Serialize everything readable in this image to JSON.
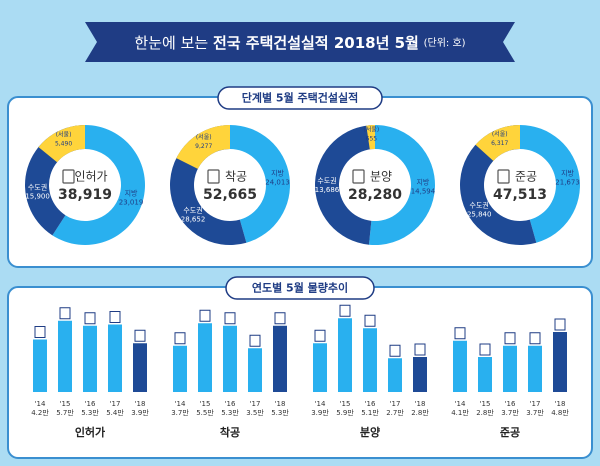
{
  "header": {
    "title_lead": "한눈에 보는",
    "title_main": "전국 주택건설실적 2018년 5월",
    "unit": "(단위: 호)"
  },
  "sections": [
    "단계별 5월 주택건설실적",
    "연도별 5월 물량추이"
  ],
  "chart_data": [
    {
      "type": "pie",
      "donut": true,
      "title": "인허가",
      "total": {
        "value": 38919,
        "label": "38,919"
      },
      "categories": [
        "지방",
        "수도권",
        "(서울)"
      ],
      "values": [
        23019,
        15900,
        5490
      ],
      "value_labels": [
        "23,019",
        "15,900",
        "5,490"
      ],
      "colors": [
        "#29b0ef",
        "#1e4a96",
        "#ffd43b"
      ]
    },
    {
      "type": "pie",
      "donut": true,
      "title": "착공",
      "total": {
        "value": 52665,
        "label": "52,665"
      },
      "categories": [
        "지방",
        "수도권",
        "(서울)"
      ],
      "values": [
        24013,
        28652,
        9277
      ],
      "value_labels": [
        "24,013",
        "28,652",
        "9,277"
      ],
      "colors": [
        "#29b0ef",
        "#1e4a96",
        "#ffd43b"
      ]
    },
    {
      "type": "pie",
      "donut": true,
      "title": "분양",
      "total": {
        "value": 28280,
        "label": "28,280"
      },
      "categories": [
        "지방",
        "수도권",
        "(서울)"
      ],
      "values": [
        14594,
        13686,
        655
      ],
      "value_labels": [
        "14,594",
        "13,686",
        "655"
      ],
      "colors": [
        "#29b0ef",
        "#1e4a96",
        "#ffd43b"
      ]
    },
    {
      "type": "pie",
      "donut": true,
      "title": "준공",
      "total": {
        "value": 47513,
        "label": "47,513"
      },
      "categories": [
        "지방",
        "수도권",
        "(서울)"
      ],
      "values": [
        21673,
        25840,
        6317
      ],
      "value_labels": [
        "21,673",
        "25,840",
        "6,317"
      ],
      "colors": [
        "#29b0ef",
        "#1e4a96",
        "#ffd43b"
      ]
    },
    {
      "type": "bar",
      "title": "인허가",
      "categories": [
        "'14",
        "'15",
        "'16",
        "'17",
        "'18"
      ],
      "values": [
        4.2,
        5.7,
        5.3,
        5.4,
        3.9
      ],
      "value_labels": [
        "4.2만",
        "5.7만",
        "5.3만",
        "5.4만",
        "3.9만"
      ],
      "colors": [
        "#29b0ef",
        "#29b0ef",
        "#29b0ef",
        "#29b0ef",
        "#1e4a96"
      ]
    },
    {
      "type": "bar",
      "title": "착공",
      "categories": [
        "'14",
        "'15",
        "'16",
        "'17",
        "'18"
      ],
      "values": [
        3.7,
        5.5,
        5.3,
        3.5,
        5.3
      ],
      "value_labels": [
        "3.7만",
        "5.5만",
        "5.3만",
        "3.5만",
        "5.3만"
      ],
      "colors": [
        "#29b0ef",
        "#29b0ef",
        "#29b0ef",
        "#29b0ef",
        "#1e4a96"
      ]
    },
    {
      "type": "bar",
      "title": "분양",
      "categories": [
        "'14",
        "'15",
        "'16",
        "'17",
        "'18"
      ],
      "values": [
        3.9,
        5.9,
        5.1,
        2.7,
        2.8
      ],
      "value_labels": [
        "3.9만",
        "5.9만",
        "5.1만",
        "2.7만",
        "2.8만"
      ],
      "colors": [
        "#29b0ef",
        "#29b0ef",
        "#29b0ef",
        "#29b0ef",
        "#1e4a96"
      ]
    },
    {
      "type": "bar",
      "title": "준공",
      "categories": [
        "'14",
        "'15",
        "'16",
        "'17",
        "'18"
      ],
      "values": [
        4.1,
        2.8,
        3.7,
        3.7,
        4.8
      ],
      "value_labels": [
        "4.1만",
        "2.8만",
        "3.7만",
        "3.7만",
        "4.8만"
      ],
      "colors": [
        "#29b0ef",
        "#29b0ef",
        "#29b0ef",
        "#29b0ef",
        "#1e4a96"
      ]
    }
  ]
}
